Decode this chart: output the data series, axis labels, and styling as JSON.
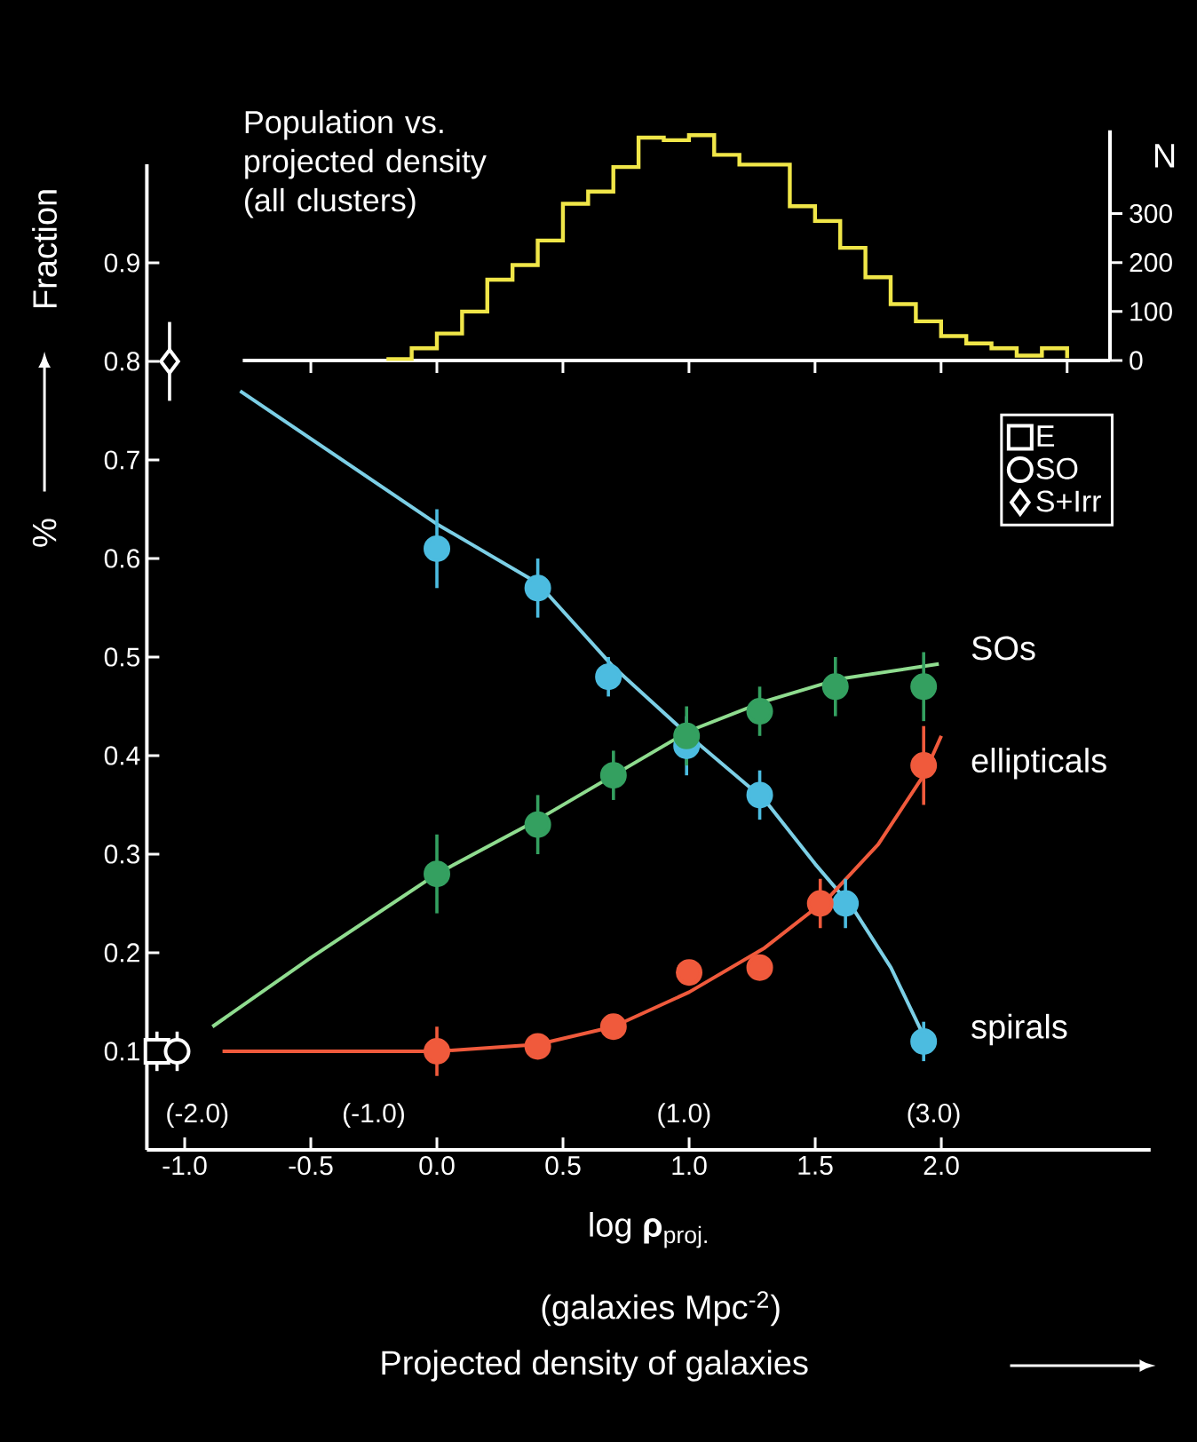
{
  "chart_data": [
    {
      "type": "step",
      "title": "Population vs. projected density (all clusters)",
      "ylabel": "N",
      "color": "#f0e648",
      "categories": [
        null,
        null,
        null,
        null,
        null,
        null,
        null,
        null,
        null,
        null,
        null,
        null,
        null,
        null,
        null,
        null,
        null,
        null,
        null,
        null,
        null,
        null,
        null,
        null,
        null,
        null,
        null,
        null
      ],
      "values": [
        3,
        25,
        55,
        100,
        165,
        195,
        245,
        320,
        345,
        395,
        455,
        450,
        460,
        420,
        400,
        400,
        315,
        285,
        230,
        170,
        115,
        80,
        50,
        35,
        25,
        10,
        25,
        5
      ],
      "ylim": [
        0,
        470
      ],
      "yticks": [
        0,
        100,
        200,
        300
      ],
      "tick_labels": "y"
    },
    {
      "type": "scatter",
      "xlabel": "log **ρ**$_{proj.}$",
      "ylabel": "Fraction",
      "annotations": [
        "%",
        "(galaxies Mpc$^{-2}$)",
        "Projected density of galaxies",
        "(-2.0)",
        "(-1.0)",
        "(1.0)",
        "(3.0)",
        "SOs",
        "ellipticals",
        "spirals"
      ],
      "xlim": [
        -1.15,
        2.83
      ],
      "ylim": [
        0,
        1.0
      ],
      "xticks": [
        {
          "value": -1.0,
          "label": "-1.0"
        },
        {
          "value": -0.5,
          "label": "-0.5"
        },
        {
          "value": 0.0,
          "label": "0.0"
        },
        {
          "value": 0.5,
          "label": "0.5"
        },
        {
          "value": 1.0,
          "label": "1.0"
        },
        {
          "value": 1.5,
          "label": "1.5"
        },
        {
          "value": 2.0,
          "label": "2.0"
        }
      ],
      "yticks": [
        0.1,
        0.2,
        0.3,
        0.4,
        0.5,
        0.6,
        0.7,
        0.8,
        0.9
      ],
      "legend": "top right",
      "series": [
        {
          "name": "E",
          "type": "scatter",
          "marker": "square",
          "color": "#ffffff",
          "x": [
            -1.11
          ],
          "values": [
            0.1
          ],
          "errors": [
            0.02
          ]
        },
        {
          "name": "SO",
          "type": "scatter",
          "marker": "circle",
          "color": "#ffffff",
          "x": [
            -1.03
          ],
          "values": [
            0.1
          ],
          "errors": [
            0.02
          ]
        },
        {
          "name": "S+Irr",
          "type": "scatter",
          "marker": "diamond",
          "color": "#ffffff",
          "x": [
            -1.06
          ],
          "values": [
            0.8
          ],
          "errors": [
            0.04
          ]
        },
        {
          "type": "line",
          "color": "#7ccfe6",
          "x": [
            -0.78,
            0.0,
            0.4,
            0.7,
            1.0,
            1.3,
            1.5,
            1.65,
            1.8,
            1.95
          ],
          "values": [
            0.77,
            0.635,
            0.575,
            0.49,
            0.42,
            0.355,
            0.29,
            0.245,
            0.185,
            0.105
          ]
        },
        {
          "type": "line",
          "color": "#8fdc8f",
          "x": [
            -0.89,
            -0.5,
            0.0,
            0.4,
            0.7,
            1.0,
            1.3,
            1.6,
            1.99
          ],
          "values": [
            0.125,
            0.195,
            0.28,
            0.335,
            0.38,
            0.425,
            0.455,
            0.478,
            0.493
          ]
        },
        {
          "type": "line",
          "color": "#f05a3c",
          "x": [
            -0.85,
            0.0,
            0.4,
            0.7,
            1.0,
            1.3,
            1.55,
            1.75,
            1.93,
            2.0
          ],
          "values": [
            0.1,
            0.1,
            0.107,
            0.125,
            0.16,
            0.205,
            0.255,
            0.31,
            0.38,
            0.42
          ]
        },
        {
          "type": "scatter",
          "marker": "circle",
          "color": "#4cbce0",
          "x": [
            0.0,
            0.4,
            0.68,
            0.99,
            1.28,
            1.62,
            1.93
          ],
          "values": [
            0.61,
            0.57,
            0.48,
            0.41,
            0.36,
            0.25,
            0.11
          ],
          "errors": [
            0.04,
            0.03,
            0.02,
            0.03,
            0.025,
            0.025,
            0.02
          ]
        },
        {
          "type": "scatter",
          "marker": "circle",
          "color": "#34a060",
          "x": [
            0.0,
            0.4,
            0.7,
            0.99,
            1.28,
            1.58,
            1.93
          ],
          "values": [
            0.28,
            0.33,
            0.38,
            0.42,
            0.445,
            0.47,
            0.47
          ],
          "errors": [
            0.04,
            0.03,
            0.025,
            0.03,
            0.025,
            0.03,
            0.035
          ]
        },
        {
          "type": "scatter",
          "marker": "circle",
          "color": "#f05a3c",
          "x": [
            0.0,
            0.4,
            0.7,
            1.0,
            1.28,
            1.52,
            1.93
          ],
          "values": [
            0.1,
            0.105,
            0.125,
            0.18,
            0.185,
            0.25,
            0.39
          ],
          "errors": [
            0.025,
            0.01,
            0.01,
            null,
            null,
            0.025,
            0.04
          ]
        }
      ]
    }
  ]
}
